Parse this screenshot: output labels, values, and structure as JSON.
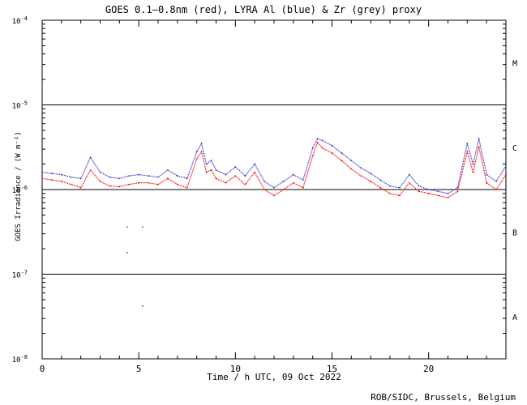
{
  "chart_data": {
    "type": "scatter",
    "title": "GOES 0.1–0.8nm (red), LYRA Al (blue) & Zr (grey) proxy",
    "xlabel": "Time / h UTC, 09 Oct 2022",
    "ylabel": "GOES Irradiance / (W m⁻²)",
    "xlim": [
      0,
      24
    ],
    "ylim": [
      1e-08,
      0.0001
    ],
    "yscale": "log",
    "x_ticks": [
      "0",
      "5",
      "10",
      "15",
      "20"
    ],
    "y_ticks": [
      {
        "base": "10",
        "exp": "-8"
      },
      {
        "base": "10",
        "exp": "-7"
      },
      {
        "base": "10",
        "exp": "-6"
      },
      {
        "base": "10",
        "exp": "-5"
      },
      {
        "base": "10",
        "exp": "-4"
      }
    ],
    "flare_classes": [
      "A",
      "B",
      "C",
      "M"
    ],
    "grid": "horizontal lines at 1e-7, 1e-6, 1e-5",
    "series": [
      {
        "name": "GOES 0.1–0.8nm",
        "color": "#ff0000",
        "x": [
          0,
          0.5,
          1,
          1.5,
          2,
          2.5,
          3,
          3.5,
          4,
          4.5,
          5,
          5.5,
          6,
          6.5,
          7,
          7.5,
          8,
          8.25,
          8.5,
          8.75,
          9,
          9.5,
          10,
          10.5,
          11,
          11.5,
          12,
          12.5,
          13,
          13.5,
          14,
          14.25,
          14.5,
          15,
          15.5,
          16,
          16.5,
          17,
          17.5,
          18,
          18.5,
          19,
          19.5,
          20,
          20.5,
          21,
          21.5,
          22,
          22.3,
          22.6,
          23,
          23.5,
          24
        ],
        "y": [
          1.35e-06,
          1.3e-06,
          1.25e-06,
          1.15e-06,
          1.05e-06,
          1.7e-06,
          1.25e-06,
          1.1e-06,
          1.08e-06,
          1.15e-06,
          1.2e-06,
          1.2e-06,
          1.15e-06,
          1.35e-06,
          1.15e-06,
          1.05e-06,
          2.3e-06,
          2.8e-06,
          1.6e-06,
          1.7e-06,
          1.35e-06,
          1.2e-06,
          1.45e-06,
          1.15e-06,
          1.6e-06,
          1e-06,
          8.5e-07,
          1e-06,
          1.2e-06,
          1.05e-06,
          2.5e-06,
          3.6e-06,
          3.1e-06,
          2.7e-06,
          2.2e-06,
          1.75e-06,
          1.45e-06,
          1.25e-06,
          1.05e-06,
          9e-07,
          8.5e-07,
          1.2e-06,
          9.5e-07,
          9e-07,
          8.5e-07,
          8e-07,
          9.5e-07,
          2.8e-06,
          1.6e-06,
          3.2e-06,
          1.2e-06,
          1e-06,
          1.5e-06
        ]
      },
      {
        "name": "LYRA Al proxy",
        "color": "#3333cc",
        "x": [
          0,
          0.5,
          1,
          1.5,
          2,
          2.5,
          3,
          3.5,
          4,
          4.5,
          5,
          5.5,
          6,
          6.5,
          7,
          7.5,
          8,
          8.25,
          8.5,
          8.75,
          9,
          9.5,
          10,
          10.5,
          11,
          11.5,
          12,
          12.5,
          13,
          13.5,
          14,
          14.25,
          14.5,
          15,
          15.5,
          16,
          16.5,
          17,
          17.5,
          18,
          18.5,
          19,
          19.5,
          20,
          20.5,
          21,
          21.5,
          22,
          22.3,
          22.6,
          23,
          23.5,
          24
        ],
        "y": [
          1.6e-06,
          1.55e-06,
          1.5e-06,
          1.4e-06,
          1.35e-06,
          2.4e-06,
          1.6e-06,
          1.4e-06,
          1.35e-06,
          1.45e-06,
          1.5e-06,
          1.45e-06,
          1.4e-06,
          1.7e-06,
          1.45e-06,
          1.35e-06,
          2.8e-06,
          3.5e-06,
          2e-06,
          2.2e-06,
          1.7e-06,
          1.5e-06,
          1.85e-06,
          1.45e-06,
          2e-06,
          1.25e-06,
          1.05e-06,
          1.25e-06,
          1.5e-06,
          1.3e-06,
          3.1e-06,
          4e-06,
          3.8e-06,
          3.3e-06,
          2.7e-06,
          2.2e-06,
          1.8e-06,
          1.55e-06,
          1.3e-06,
          1.1e-06,
          1.05e-06,
          1.5e-06,
          1.1e-06,
          1e-06,
          9.5e-07,
          9e-07,
          1.05e-06,
          3.5e-06,
          2e-06,
          4e-06,
          1.5e-06,
          1.25e-06,
          1.9e-06
        ]
      }
    ]
  },
  "credit": "ROB/SIDC, Brussels, Belgium"
}
